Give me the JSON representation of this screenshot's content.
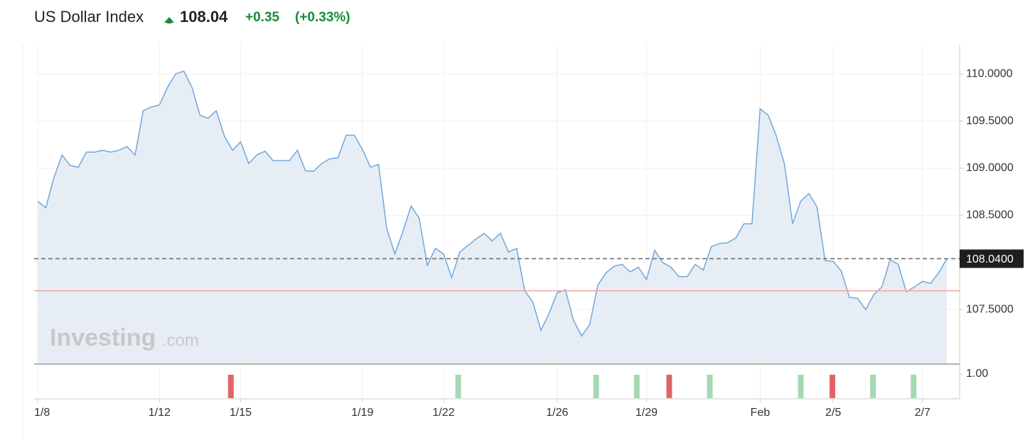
{
  "chart_data": {
    "type": "line",
    "title": "US Dollar Index",
    "last": 108.04,
    "change": "+0.35",
    "change_percent": "(+0.33%)",
    "watermark": [
      "Investing",
      ".com"
    ],
    "color": "#6fa8dc",
    "fill": "#e6edf5",
    "categories": [
      "1/8",
      null,
      null,
      null,
      null,
      null,
      null,
      null,
      null,
      null,
      null,
      null,
      null,
      null,
      null,
      "1/12",
      null,
      null,
      null,
      null,
      null,
      null,
      null,
      null,
      null,
      "1/15",
      null,
      null,
      null,
      null,
      null,
      null,
      null,
      null,
      null,
      null,
      null,
      null,
      null,
      null,
      "1/19",
      null,
      null,
      null,
      null,
      null,
      null,
      null,
      null,
      null,
      "1/22",
      null,
      null,
      null,
      null,
      null,
      null,
      null,
      null,
      null,
      null,
      null,
      null,
      null,
      "1/26",
      null,
      null,
      null,
      null,
      null,
      null,
      null,
      null,
      null,
      null,
      "1/29",
      null,
      null,
      null,
      null,
      null,
      null,
      null,
      null,
      null,
      null,
      null,
      null,
      null,
      "Feb",
      null,
      null,
      null,
      null,
      null,
      null,
      null,
      null,
      "2/5",
      null,
      null,
      null,
      null,
      null,
      null,
      null,
      null,
      null,
      null,
      "2/7",
      null,
      null,
      null
    ],
    "values": [
      108.65,
      108.58,
      108.9,
      109.14,
      109.03,
      109.01,
      109.17,
      109.17,
      109.19,
      109.17,
      109.19,
      109.23,
      109.14,
      109.61,
      109.65,
      109.67,
      109.86,
      110.0,
      110.03,
      109.86,
      109.56,
      109.53,
      109.61,
      109.34,
      109.19,
      109.28,
      109.05,
      109.14,
      109.18,
      109.08,
      109.08,
      109.08,
      109.19,
      108.97,
      108.97,
      109.05,
      109.1,
      109.11,
      109.35,
      109.35,
      109.2,
      109.01,
      109.04,
      108.36,
      108.09,
      108.33,
      108.6,
      108.47,
      107.97,
      108.15,
      108.09,
      107.84,
      108.11,
      108.18,
      108.25,
      108.31,
      108.23,
      108.31,
      108.11,
      108.15,
      107.7,
      107.58,
      107.28,
      107.46,
      107.68,
      107.71,
      107.39,
      107.22,
      107.34,
      107.76,
      107.89,
      107.96,
      107.98,
      107.9,
      107.95,
      107.82,
      108.13,
      108.0,
      107.95,
      107.85,
      107.85,
      107.98,
      107.92,
      108.17,
      108.2,
      108.21,
      108.26,
      108.41,
      108.41,
      109.63,
      109.56,
      109.34,
      109.04,
      108.41,
      108.65,
      108.73,
      108.59,
      108.02,
      108.01,
      107.91,
      107.63,
      107.62,
      107.5,
      107.66,
      107.74,
      108.03,
      107.98,
      107.69,
      107.74,
      107.8,
      107.78,
      107.89,
      108.04
    ],
    "ylim": [
      106.93,
      110.31
    ],
    "yticks": [
      {
        "value": 107.5,
        "label": "107.5000"
      },
      {
        "value": 108.5,
        "label": "108.5000"
      },
      {
        "value": 109,
        "label": "109.0000"
      },
      {
        "value": 109.5,
        "label": "109.5000"
      },
      {
        "value": 110,
        "label": "110.0000"
      }
    ],
    "grid": true,
    "last_line": {
      "value": 108.04,
      "label": "108.0400"
    },
    "reference_line": 107.7,
    "indicator": {
      "yticks": [
        {
          "value": 1,
          "label": "1.00"
        }
      ],
      "events": [
        {
          "x": 23.8,
          "color": "#e06666"
        },
        {
          "x": 51.8,
          "color": "#a3d9b1"
        },
        {
          "x": 68.8,
          "color": "#a3d9b1"
        },
        {
          "x": 73.8,
          "color": "#a3d9b1"
        },
        {
          "x": 77.8,
          "color": "#e06666"
        },
        {
          "x": 82.8,
          "color": "#a3d9b1"
        },
        {
          "x": 94.0,
          "color": "#a3d9b1"
        },
        {
          "x": 97.9,
          "color": "#e06666"
        },
        {
          "x": 102.9,
          "color": "#a3d9b1"
        },
        {
          "x": 107.9,
          "color": "#a3d9b1"
        }
      ]
    }
  }
}
